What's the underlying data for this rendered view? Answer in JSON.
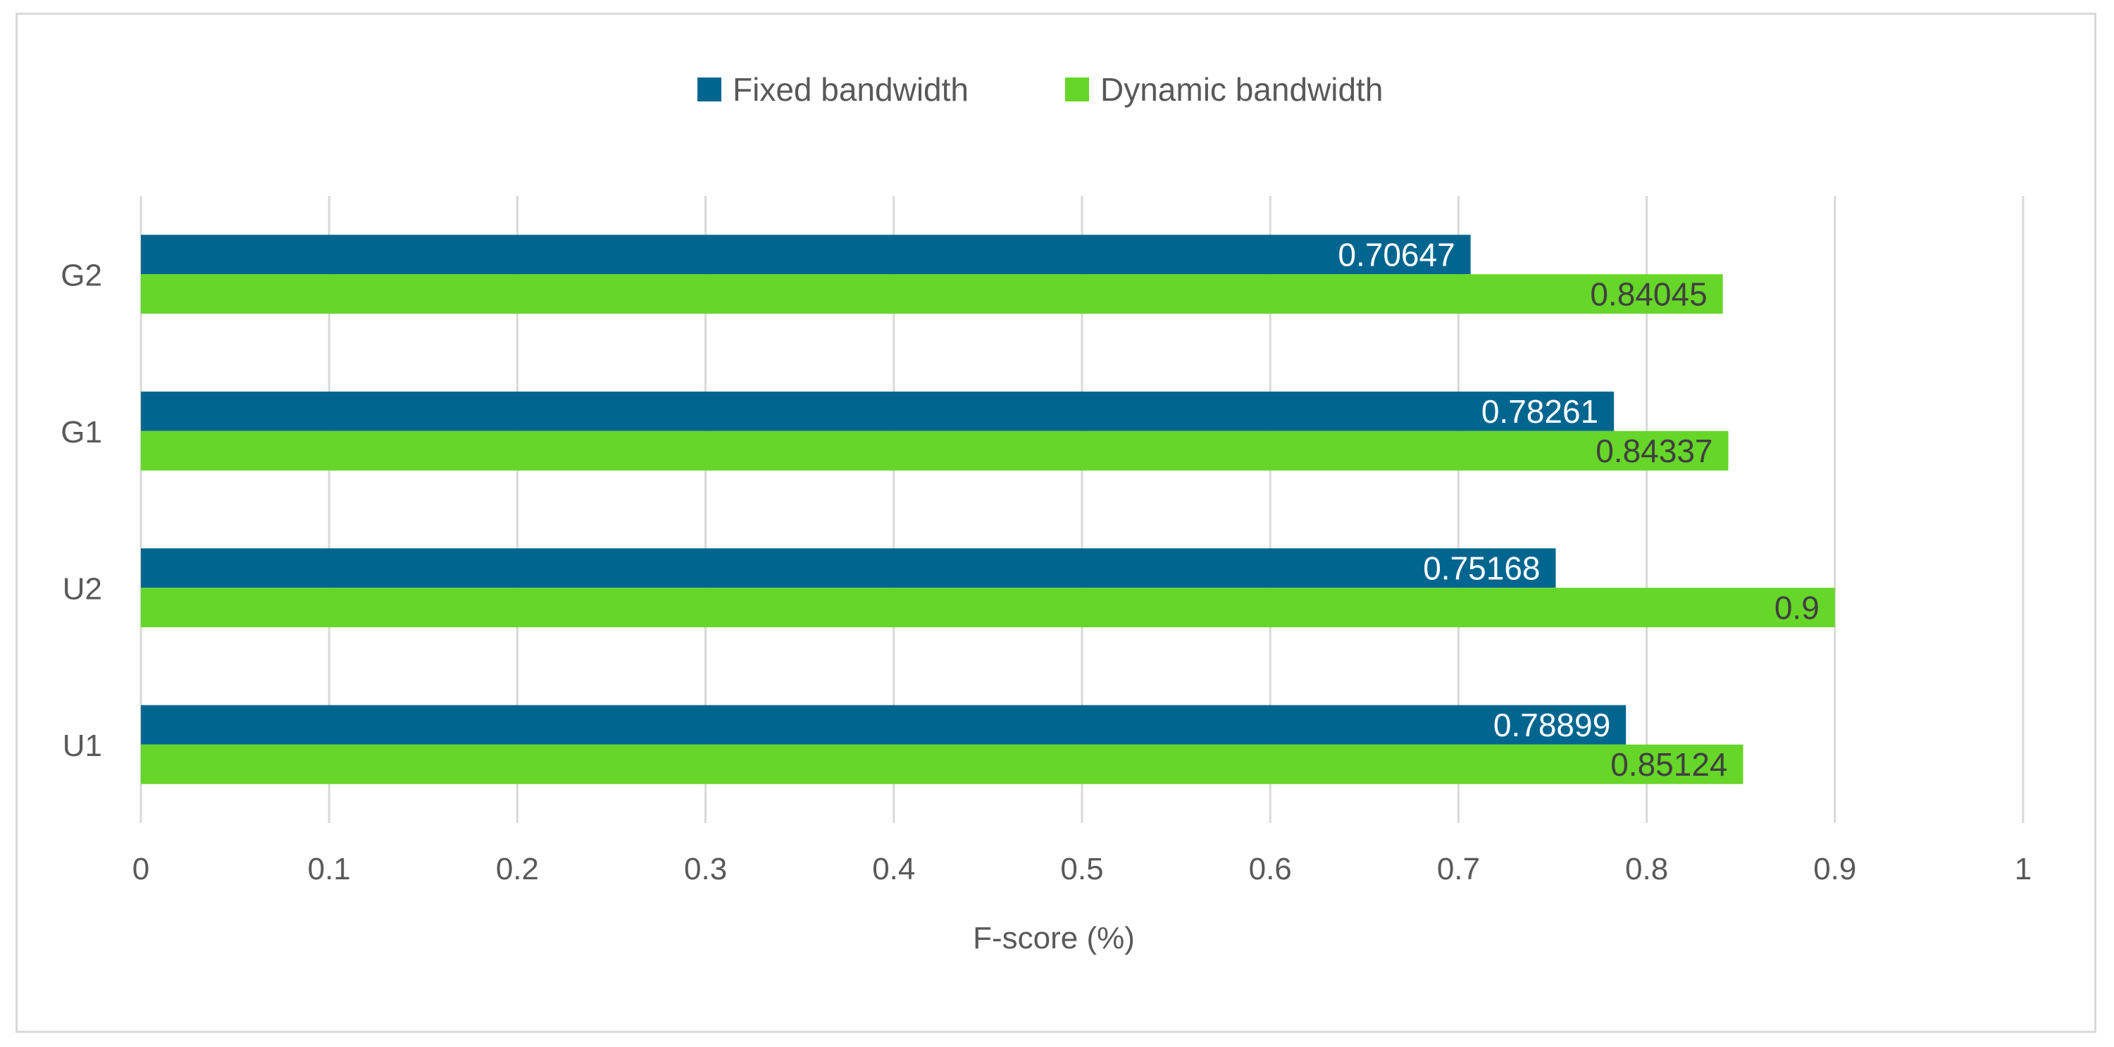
{
  "chart_data": {
    "type": "bar",
    "orientation": "horizontal",
    "categories": [
      "U1",
      "U2",
      "G1",
      "G2"
    ],
    "series": [
      {
        "name": "Fixed bandwidth",
        "color": "#00668f",
        "label_color": "#ffffff",
        "values": [
          0.78899,
          0.75168,
          0.78261,
          0.70647
        ],
        "labels": [
          "0.78899",
          "0.75168",
          "0.78261",
          "0.70647"
        ]
      },
      {
        "name": "Dynamic bandwidth",
        "color": "#66d628",
        "label_color": "#404040",
        "values": [
          0.85124,
          0.9,
          0.84337,
          0.84045
        ],
        "labels": [
          "0.85124",
          "0.9",
          "0.84337",
          "0.84045"
        ]
      }
    ],
    "xlabel": "F-score (%)",
    "ylabel": "",
    "title": "",
    "xlim": [
      0,
      1
    ],
    "xticks": [
      0,
      0.1,
      0.2,
      0.3,
      0.4,
      0.5,
      0.6,
      0.7,
      0.8,
      0.9,
      1
    ],
    "xtick_labels": [
      "0",
      "0.1",
      "0.2",
      "0.3",
      "0.4",
      "0.5",
      "0.6",
      "0.7",
      "0.8",
      "0.9",
      "1"
    ],
    "grid": true,
    "legend_position": "top"
  }
}
